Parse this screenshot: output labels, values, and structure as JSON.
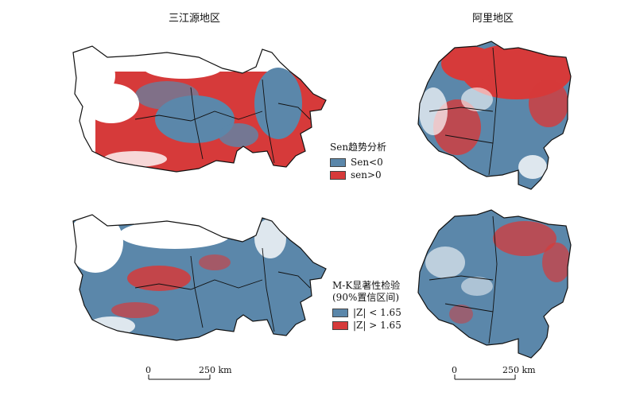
{
  "panels": {
    "sanjiangyuan_title": "三江源地区",
    "ali_title": "阿里地区"
  },
  "legend_sen": {
    "title": "Sen趋势分析",
    "items": [
      {
        "label": "Sen<0",
        "color": "#5b87aa"
      },
      {
        "label": "sen>0",
        "color": "#d63a3a"
      }
    ]
  },
  "legend_mk": {
    "title_line1": "M-K显著性检验",
    "title_line2": "(90%置信区间)",
    "items": [
      {
        "label": "|Z| < 1.65",
        "color": "#5b87aa"
      },
      {
        "label": "|Z| > 1.65",
        "color": "#d63a3a"
      }
    ]
  },
  "scalebar_left": {
    "zero": "0",
    "end": "250 km"
  },
  "scalebar_right": {
    "zero": "0",
    "end": "250 km"
  },
  "colors": {
    "negative": "#5b87aa",
    "positive": "#d63a3a",
    "boundary": "#111111",
    "background": "#ffffff"
  }
}
